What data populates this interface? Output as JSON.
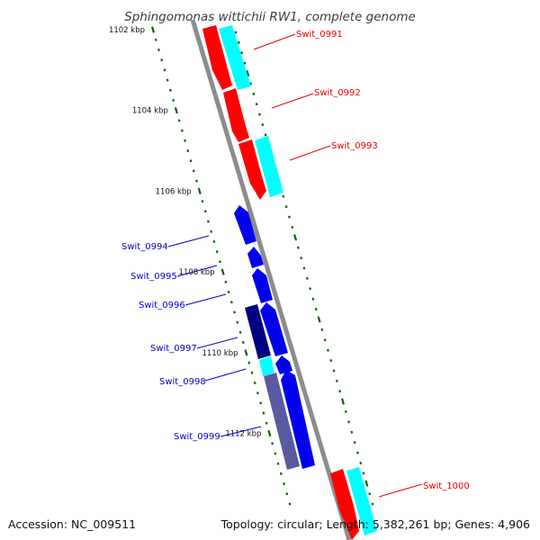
{
  "title": "Sphingomonas wittichii RW1, complete genome",
  "footer": {
    "accession": "Accession: NC_009511",
    "summary": "Topology: circular; Length: 5,382,261 bp; Genes: 4,906"
  },
  "ruler_labels": [
    "1102 kbp",
    "1104 kbp",
    "1106 kbp",
    "1108 kbp",
    "1110 kbp",
    "1112 kbp"
  ],
  "genes": [
    {
      "id": "Swit_0991",
      "strand": "forward",
      "color": "#ff0000"
    },
    {
      "id": "Swit_0992",
      "strand": "forward",
      "color": "#ff0000"
    },
    {
      "id": "Swit_0993",
      "strand": "forward",
      "color": "#ff0000"
    },
    {
      "id": "Swit_0994",
      "strand": "reverse",
      "color": "#0000ee"
    },
    {
      "id": "Swit_0995",
      "strand": "reverse",
      "color": "#0000ee"
    },
    {
      "id": "Swit_0996",
      "strand": "reverse",
      "color": "#0000ee"
    },
    {
      "id": "Swit_0997",
      "strand": "reverse",
      "color": "#0000ee"
    },
    {
      "id": "Swit_0998",
      "strand": "reverse",
      "color": "#0000ee"
    },
    {
      "id": "Swit_0999",
      "strand": "reverse",
      "color": "#0000ee"
    },
    {
      "id": "Swit_1000",
      "strand": "forward",
      "color": "#ff0000"
    }
  ],
  "colors": {
    "backbone": "#8c8c8c",
    "forward_cds": "#ff0000",
    "reverse_cds": "#0000ee",
    "reverse_cds_dark": "#000080",
    "reverse_cds_muted": "#5a5aa0",
    "feature_cyan": "#00ffff",
    "ruler_green": "#006400",
    "forward_label": "#ee0000",
    "reverse_label": "#0000cc"
  }
}
